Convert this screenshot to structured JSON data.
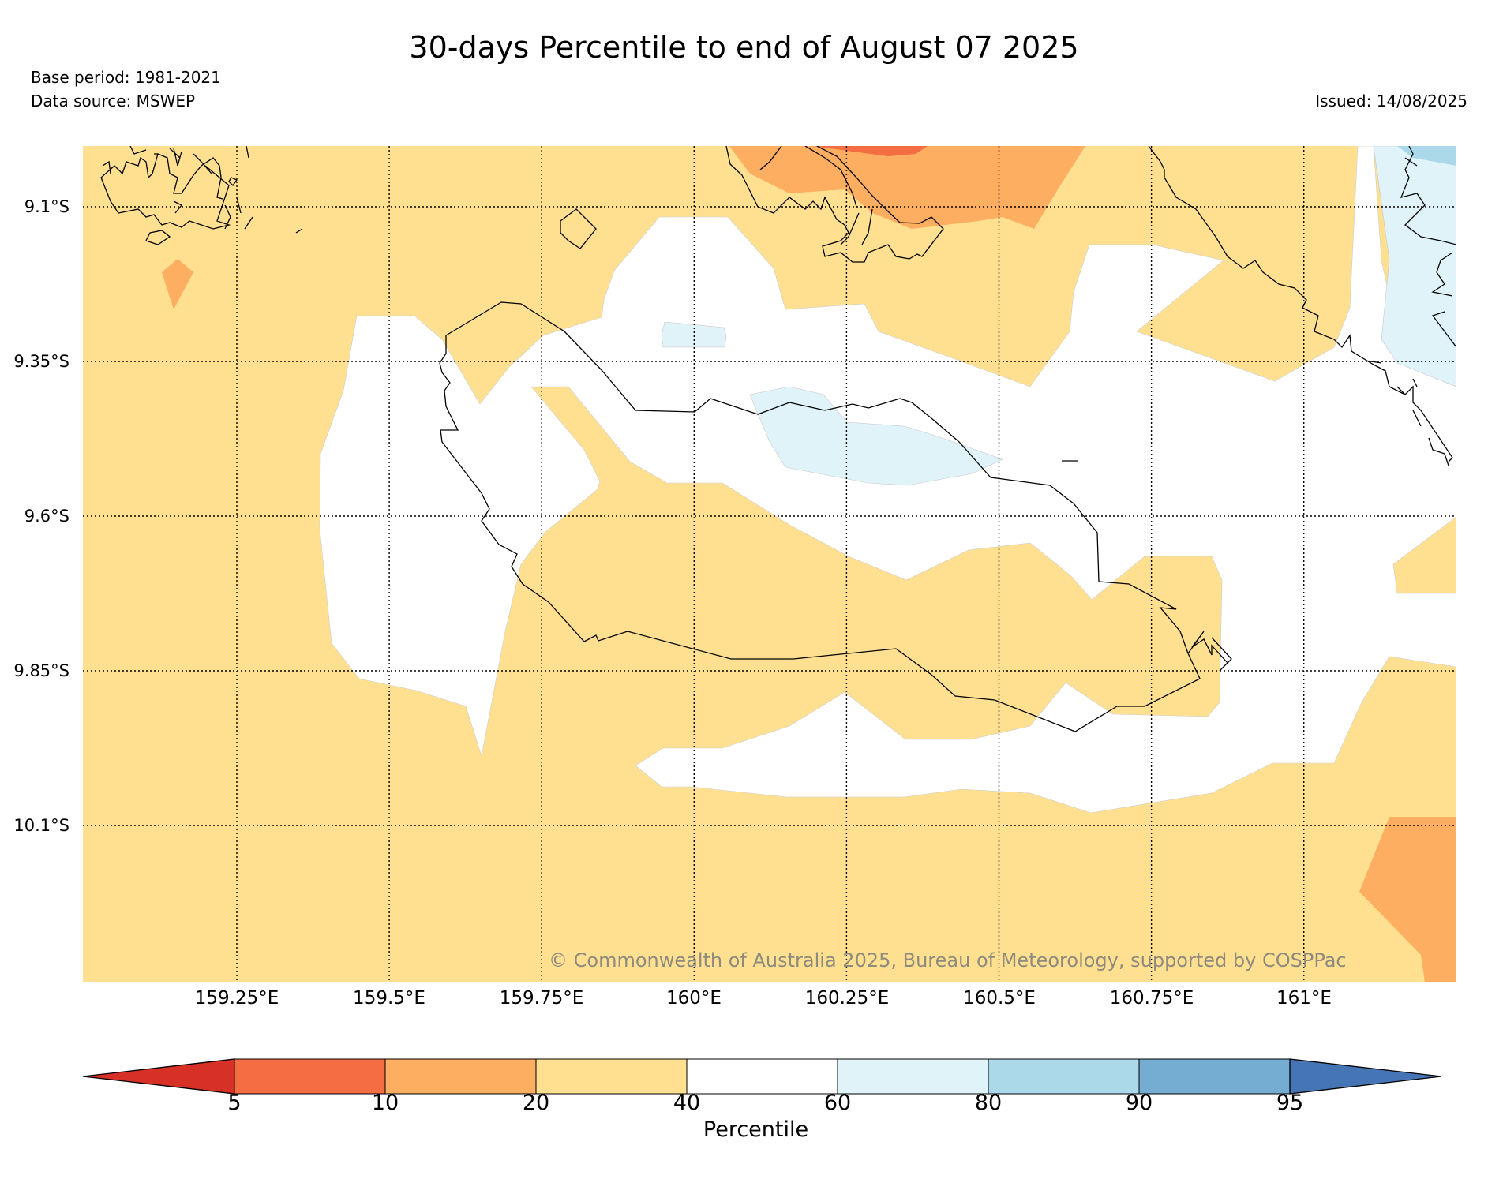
{
  "header": {
    "title": "30-days Percentile to end of August 07 2025",
    "base_period": "Base period: 1981-2021",
    "data_source": "Data source: MSWEP",
    "issued": "Issued: 14/08/2025"
  },
  "map": {
    "copyright": "© Commonwealth of Australia 2025, Bureau of Meteorology, supported by COSPPac",
    "lat_ticks": [
      "9.1°S",
      "9.35°S",
      "9.6°S",
      "9.85°S",
      "10.1°S"
    ],
    "lon_ticks": [
      "159.25°E",
      "159.5°E",
      "159.75°E",
      "160°E",
      "160.25°E",
      "160.5°E",
      "160.75°E",
      "161°E"
    ],
    "lat_values": [
      -9.1,
      -9.35,
      -9.6,
      -9.85,
      -10.1
    ],
    "lon_values": [
      159.25,
      159.5,
      159.75,
      160.0,
      160.25,
      160.5,
      160.75,
      161.0
    ]
  },
  "colorbar": {
    "title": "Percentile",
    "ticks": [
      "5",
      "10",
      "20",
      "40",
      "60",
      "80",
      "90",
      "95"
    ],
    "colors": {
      "below_5": "#d73027",
      "p5_10": "#f46d43",
      "p10_20": "#fdae61",
      "p20_40": "#fee090",
      "p40_60": "#ffffff",
      "p60_80": "#e0f3f8",
      "p80_90": "#abd9e9",
      "p90_95": "#74add1",
      "above_95": "#4575b4"
    }
  }
}
